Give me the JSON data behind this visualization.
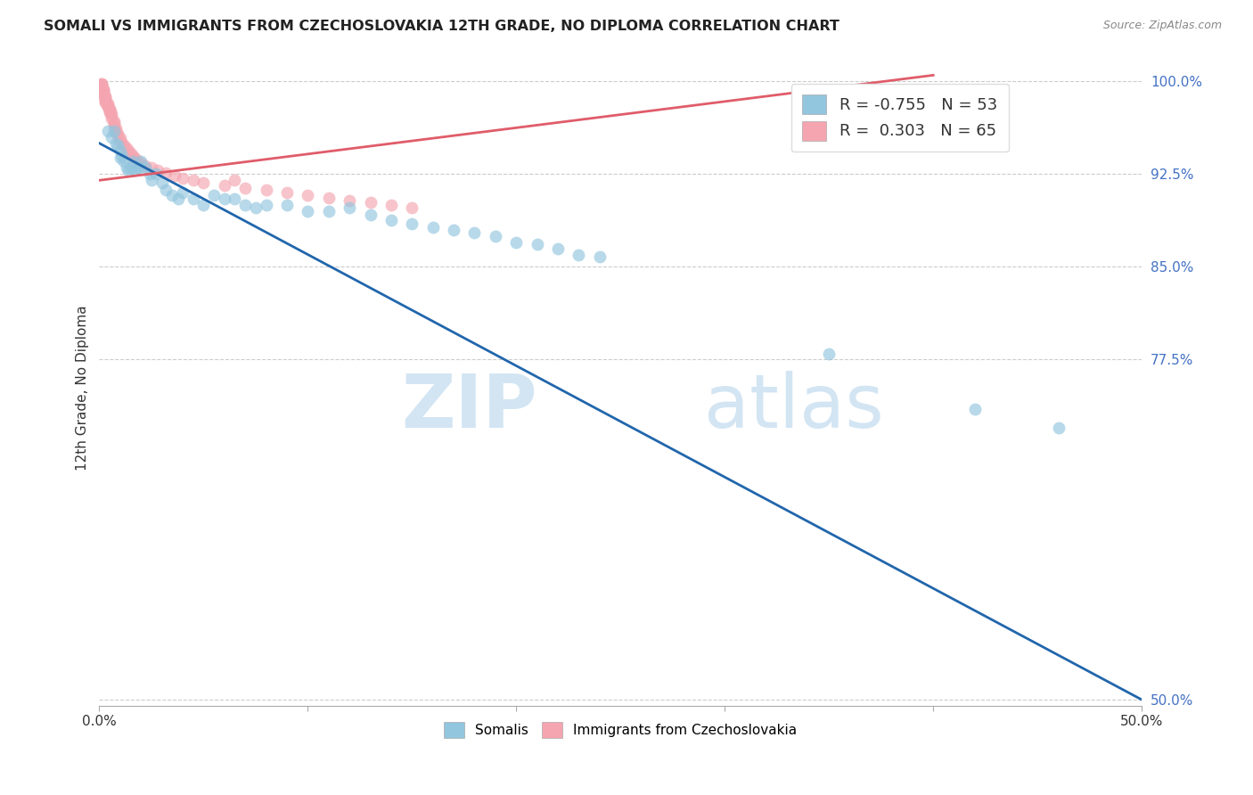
{
  "title": "SOMALI VS IMMIGRANTS FROM CZECHOSLOVAKIA 12TH GRADE, NO DIPLOMA CORRELATION CHART",
  "source": "Source: ZipAtlas.com",
  "ylabel": "12th Grade, No Diploma",
  "xlim": [
    0.0,
    0.5
  ],
  "ylim": [
    0.495,
    1.01
  ],
  "blue_R": -0.755,
  "blue_N": 53,
  "pink_R": 0.303,
  "pink_N": 65,
  "blue_color": "#92c5de",
  "pink_color": "#f4a5b0",
  "blue_line_color": "#2166ac",
  "pink_line_color": "#e05c6a",
  "legend_label_blue": "Somalis",
  "legend_label_pink": "Immigrants from Czechoslovakia",
  "yticks": [
    0.5,
    0.775,
    0.85,
    0.925,
    1.0
  ],
  "ytick_labels": [
    "50.0%",
    "77.5%",
    "85.0%",
    "92.5%",
    "100.0%"
  ],
  "blue_line_x": [
    0.0,
    0.5
  ],
  "blue_line_y": [
    0.95,
    0.5
  ],
  "pink_line_x": [
    0.0,
    0.4
  ],
  "pink_line_y": [
    0.92,
    1.005
  ],
  "blue_scatter_x": [
    0.004,
    0.006,
    0.007,
    0.008,
    0.009,
    0.01,
    0.01,
    0.011,
    0.012,
    0.013,
    0.014,
    0.015,
    0.016,
    0.017,
    0.018,
    0.019,
    0.02,
    0.022,
    0.024,
    0.025,
    0.027,
    0.03,
    0.032,
    0.035,
    0.038,
    0.04,
    0.045,
    0.05,
    0.055,
    0.06,
    0.065,
    0.07,
    0.075,
    0.08,
    0.09,
    0.1,
    0.11,
    0.12,
    0.13,
    0.14,
    0.15,
    0.16,
    0.17,
    0.18,
    0.19,
    0.2,
    0.21,
    0.22,
    0.23,
    0.24,
    0.35,
    0.42,
    0.46
  ],
  "blue_scatter_y": [
    0.96,
    0.955,
    0.96,
    0.95,
    0.948,
    0.944,
    0.938,
    0.94,
    0.935,
    0.93,
    0.928,
    0.93,
    0.935,
    0.928,
    0.93,
    0.93,
    0.935,
    0.93,
    0.925,
    0.92,
    0.925,
    0.918,
    0.912,
    0.908,
    0.905,
    0.91,
    0.905,
    0.9,
    0.908,
    0.905,
    0.905,
    0.9,
    0.898,
    0.9,
    0.9,
    0.895,
    0.895,
    0.898,
    0.892,
    0.888,
    0.885,
    0.882,
    0.88,
    0.878,
    0.875,
    0.87,
    0.868,
    0.865,
    0.86,
    0.858,
    0.78,
    0.735,
    0.72
  ],
  "pink_scatter_x": [
    0.001,
    0.001,
    0.001,
    0.001,
    0.001,
    0.002,
    0.002,
    0.002,
    0.002,
    0.002,
    0.002,
    0.003,
    0.003,
    0.003,
    0.003,
    0.003,
    0.003,
    0.004,
    0.004,
    0.004,
    0.004,
    0.005,
    0.005,
    0.005,
    0.005,
    0.006,
    0.006,
    0.006,
    0.007,
    0.007,
    0.007,
    0.008,
    0.008,
    0.009,
    0.009,
    0.01,
    0.01,
    0.011,
    0.012,
    0.013,
    0.014,
    0.015,
    0.016,
    0.017,
    0.018,
    0.02,
    0.022,
    0.025,
    0.028,
    0.032,
    0.036,
    0.04,
    0.045,
    0.05,
    0.06,
    0.07,
    0.08,
    0.09,
    0.1,
    0.11,
    0.12,
    0.13,
    0.14,
    0.15,
    0.065
  ],
  "pink_scatter_y": [
    0.998,
    0.998,
    0.997,
    0.996,
    0.995,
    0.994,
    0.993,
    0.992,
    0.991,
    0.99,
    0.989,
    0.988,
    0.987,
    0.986,
    0.985,
    0.984,
    0.983,
    0.982,
    0.981,
    0.98,
    0.979,
    0.978,
    0.977,
    0.976,
    0.975,
    0.974,
    0.972,
    0.97,
    0.968,
    0.966,
    0.964,
    0.962,
    0.96,
    0.958,
    0.956,
    0.954,
    0.952,
    0.95,
    0.948,
    0.946,
    0.944,
    0.942,
    0.94,
    0.938,
    0.936,
    0.934,
    0.932,
    0.93,
    0.928,
    0.926,
    0.924,
    0.922,
    0.92,
    0.918,
    0.916,
    0.914,
    0.912,
    0.91,
    0.908,
    0.906,
    0.904,
    0.902,
    0.9,
    0.898,
    0.92
  ]
}
